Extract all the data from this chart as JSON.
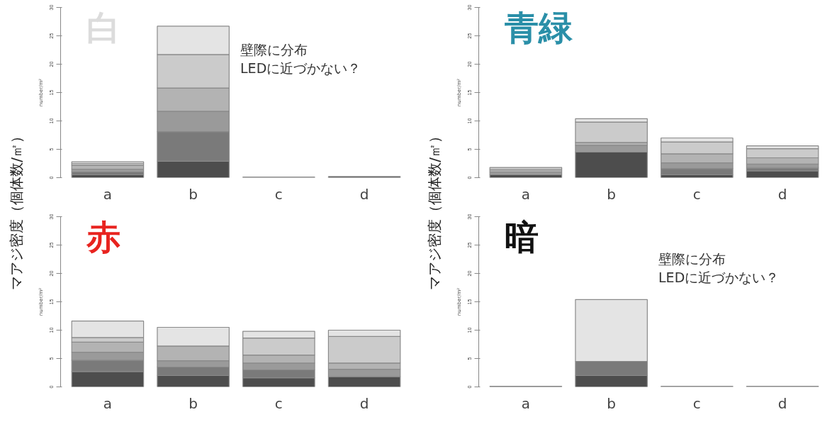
{
  "chart_data": [
    {
      "type": "bar",
      "title": "白",
      "stacked": true,
      "ylabel": "number/m²",
      "categories": [
        "a",
        "b",
        "c",
        "d"
      ],
      "ylim": [
        0,
        30
      ],
      "yticks": [
        0,
        5,
        10,
        15,
        20,
        25,
        30
      ],
      "annotations": [
        "マアジ密度（個体数/㎡）",
        "壁際に分布\nLEDに近づかない？"
      ],
      "series": [
        {
          "color": "#4d4d4d",
          "values": [
            0.5,
            2.9,
            0,
            0.2
          ]
        },
        {
          "color": "#7a7a7a",
          "values": [
            0.5,
            5.2,
            0,
            0
          ]
        },
        {
          "color": "#9a9a9a",
          "values": [
            0.5,
            3.6,
            0,
            0
          ]
        },
        {
          "color": "#b3b3b3",
          "values": [
            0.7,
            4.1,
            0,
            0
          ]
        },
        {
          "color": "#cbcbcb",
          "values": [
            0.3,
            5.9,
            0,
            0
          ]
        },
        {
          "color": "#e4e4e4",
          "values": [
            0.3,
            5.0,
            0.1,
            0
          ]
        }
      ]
    },
    {
      "type": "bar",
      "title": "青緑",
      "stacked": true,
      "ylabel": "number/m²",
      "categories": [
        "a",
        "b",
        "c",
        "d"
      ],
      "ylim": [
        0,
        30
      ],
      "yticks": [
        0,
        5,
        10,
        15,
        20,
        25,
        30
      ],
      "annotations": [
        "マアジ密度（個体数/㎡）"
      ],
      "series": [
        {
          "color": "#4d4d4d",
          "values": [
            0.5,
            4.5,
            0.5,
            1.2
          ]
        },
        {
          "color": "#7a7a7a",
          "values": [
            0,
            0,
            1.1,
            0.5
          ]
        },
        {
          "color": "#9a9a9a",
          "values": [
            0.5,
            1.2,
            1.0,
            0.7
          ]
        },
        {
          "color": "#b3b3b3",
          "values": [
            0.4,
            0.5,
            1.6,
            1.1
          ]
        },
        {
          "color": "#cbcbcb",
          "values": [
            0.4,
            3.6,
            2.1,
            1.6
          ]
        },
        {
          "color": "#e4e4e4",
          "values": [
            0,
            0.6,
            0.7,
            0.5
          ]
        }
      ]
    },
    {
      "type": "bar",
      "title": "赤",
      "stacked": true,
      "ylabel": "number/m²",
      "categories": [
        "a",
        "b",
        "c",
        "d"
      ],
      "ylim": [
        0,
        30
      ],
      "yticks": [
        0,
        5,
        10,
        15,
        20,
        25,
        30
      ],
      "series": [
        {
          "color": "#4d4d4d",
          "values": [
            2.7,
            2.0,
            1.6,
            1.8
          ]
        },
        {
          "color": "#7a7a7a",
          "values": [
            2.0,
            1.5,
            1.4,
            0
          ]
        },
        {
          "color": "#9a9a9a",
          "values": [
            1.4,
            1.1,
            1.2,
            1.3
          ]
        },
        {
          "color": "#b3b3b3",
          "values": [
            1.8,
            2.6,
            1.4,
            1.1
          ]
        },
        {
          "color": "#cbcbcb",
          "values": [
            0.8,
            0,
            3.0,
            4.7
          ]
        },
        {
          "color": "#e4e4e4",
          "values": [
            2.9,
            3.3,
            1.2,
            1.1
          ]
        }
      ]
    },
    {
      "type": "bar",
      "title": "暗",
      "stacked": true,
      "ylabel": "number/m²",
      "categories": [
        "a",
        "b",
        "c",
        "d"
      ],
      "ylim": [
        0,
        30
      ],
      "yticks": [
        0,
        5,
        10,
        15,
        20,
        25,
        30
      ],
      "annotations": [
        "壁際に分布\nLEDに近づかない？"
      ],
      "series": [
        {
          "color": "#4d4d4d",
          "values": [
            0.1,
            2.0,
            0,
            0
          ]
        },
        {
          "color": "#7a7a7a",
          "values": [
            0,
            2.5,
            0,
            0
          ]
        },
        {
          "color": "#e4e4e4",
          "values": [
            0,
            10.9,
            0.1,
            0.1
          ]
        }
      ]
    }
  ]
}
